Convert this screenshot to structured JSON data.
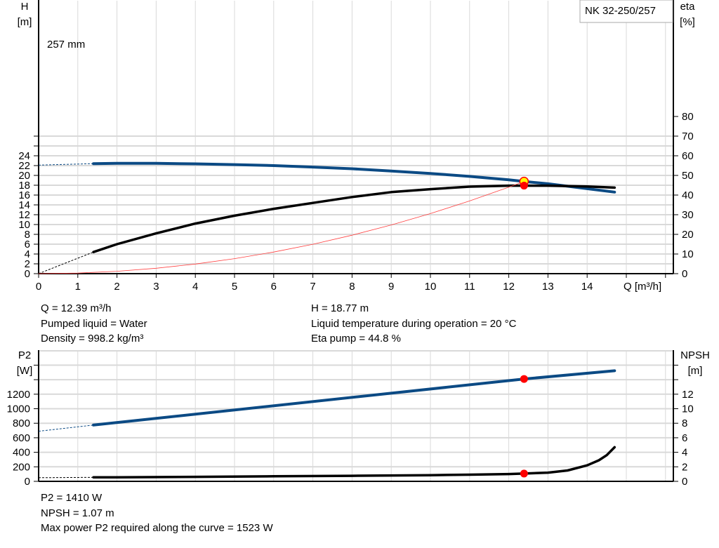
{
  "colors": {
    "pump_curve": "#0b4a84",
    "eta_curve": "#000000",
    "system_curve": "#ff4040",
    "duty_point": "#ff0000",
    "duty_point_fill": "#ffff00",
    "grid": "#d9d9d9"
  },
  "legend": {
    "label": "NK 32-250/257"
  },
  "chart_data": [
    {
      "type": "line",
      "xlabel": "Q [m³/h]",
      "ylabel_left": [
        "H",
        "[m]"
      ],
      "ylabel_right": [
        "eta",
        "[%]"
      ],
      "xlim": [
        0,
        16.2
      ],
      "ylim_left": [
        0,
        28
      ],
      "ylim_right": [
        0,
        100
      ],
      "x_ticks": [
        0,
        1,
        2,
        3,
        4,
        5,
        6,
        7,
        8,
        9,
        10,
        11,
        12,
        13,
        14
      ],
      "y_ticks_left": [
        0,
        2,
        4,
        6,
        8,
        10,
        12,
        14,
        16,
        18,
        20,
        22,
        24
      ],
      "y_ticks_right": [
        0,
        10,
        20,
        30,
        40,
        50,
        60,
        70,
        80
      ],
      "grid": true,
      "annotations": [
        {
          "text": "257 mm"
        }
      ],
      "series": [
        {
          "id": "H",
          "axis": "left",
          "dashed_segment": {
            "x": [
              0,
              1.4
            ],
            "y": [
              22.1,
              22.4
            ]
          },
          "x": [
            1.4,
            2,
            3,
            4,
            5,
            6,
            7,
            8,
            9,
            10,
            11,
            12,
            12.39,
            13,
            14,
            14.7
          ],
          "y": [
            22.4,
            22.45,
            22.45,
            22.35,
            22.2,
            22.0,
            21.7,
            21.35,
            20.9,
            20.4,
            19.8,
            19.1,
            18.77,
            18.3,
            17.3,
            16.6
          ]
        },
        {
          "id": "eta",
          "axis": "right",
          "dashed_segment": {
            "x": [
              0,
              1.4
            ],
            "y": [
              0,
              11
            ]
          },
          "x": [
            1.4,
            2,
            3,
            4,
            5,
            6,
            7,
            8,
            9,
            10,
            11,
            12,
            12.39,
            13,
            14,
            14.7
          ],
          "y": [
            11,
            15,
            20.5,
            25.5,
            29.5,
            33,
            36,
            39,
            41.5,
            43,
            44.3,
            44.8,
            44.8,
            44.8,
            44.4,
            43.8
          ]
        },
        {
          "id": "system",
          "axis": "left",
          "x": [
            0,
            1,
            2,
            3,
            4,
            5,
            6,
            7,
            8,
            9,
            10,
            11,
            12,
            12.39
          ],
          "y": [
            0,
            0.12,
            0.49,
            1.1,
            1.96,
            3.06,
            4.4,
            5.99,
            7.83,
            9.91,
            12.23,
            14.8,
            17.61,
            18.77
          ]
        }
      ],
      "duty_points": [
        {
          "series": "H",
          "x": 12.39,
          "y": 18.77
        },
        {
          "series": "eta",
          "x": 12.39,
          "y": 44.8
        }
      ]
    },
    {
      "type": "line",
      "ylabel_left": [
        "P2",
        "[W]"
      ],
      "ylabel_right": [
        "NPSH",
        "[m]"
      ],
      "xlim": [
        0,
        16.2
      ],
      "ylim_left": [
        0,
        1800
      ],
      "ylim_right": [
        0,
        18
      ],
      "y_ticks_left": [
        0,
        200,
        400,
        600,
        800,
        1000,
        1200
      ],
      "y_ticks_right": [
        0,
        2,
        4,
        6,
        8,
        10,
        12
      ],
      "grid": true,
      "series": [
        {
          "id": "P2",
          "axis": "left",
          "dashed_segment": {
            "x": [
              0,
              1.4
            ],
            "y": [
              690,
              775
            ]
          },
          "x": [
            1.4,
            12.39,
            14.7
          ],
          "y": [
            775,
            1410,
            1523
          ]
        },
        {
          "id": "NPSH",
          "axis": "right",
          "dashed_segment": {
            "x": [
              0,
              1.4
            ],
            "y": [
              0.5,
              0.55
            ]
          },
          "x": [
            1.4,
            2,
            4,
            6,
            8,
            10,
            11,
            12,
            12.39,
            13,
            13.5,
            14,
            14.3,
            14.5,
            14.7
          ],
          "y": [
            0.55,
            0.56,
            0.62,
            0.7,
            0.76,
            0.85,
            0.92,
            1.0,
            1.07,
            1.2,
            1.5,
            2.2,
            2.9,
            3.6,
            4.7
          ]
        }
      ],
      "duty_points": [
        {
          "series": "P2",
          "x": 12.39,
          "y": 1410
        },
        {
          "series": "NPSH",
          "x": 12.39,
          "y": 1.07
        }
      ]
    }
  ],
  "info_top_left": [
    "Q = 12.39 m³/h",
    "Pumped liquid = Water",
    "Density = 998.2 kg/m³"
  ],
  "info_top_right": [
    "H = 18.77 m",
    "Liquid temperature during operation = 20 °C",
    "Eta pump = 44.8 %"
  ],
  "info_bottom": [
    "P2 = 1410 W",
    "NPSH = 1.07 m",
    "Max power P2 required along the curve = 1523 W"
  ]
}
